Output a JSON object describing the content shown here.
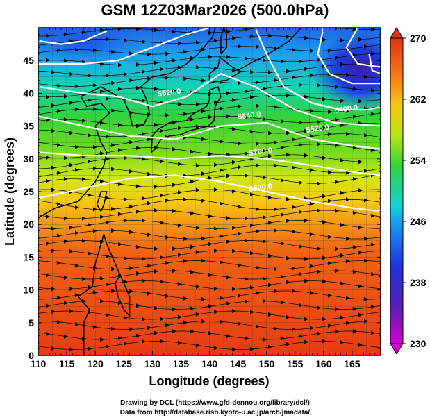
{
  "title": "GSM 12Z03Mar2026 (500.0hPa)",
  "x_axis": {
    "label": "Longitude (degrees)",
    "min": 110,
    "max": 170,
    "ticks": [
      110,
      115,
      120,
      125,
      130,
      135,
      140,
      145,
      150,
      155,
      160,
      165
    ]
  },
  "y_axis": {
    "label": "Latitude  (degrees)",
    "min": 0,
    "max": 50,
    "ticks": [
      0,
      5,
      10,
      15,
      20,
      25,
      30,
      35,
      40,
      45
    ]
  },
  "colorbar": {
    "min": 230,
    "max": 270,
    "tick_labels": [
      "270",
      "262",
      "254",
      "246",
      "238",
      "230"
    ],
    "tick_values": [
      270,
      262,
      254,
      246,
      238,
      230
    ],
    "colors": [
      "#c800c8",
      "#4a1ea8",
      "#1e3cdc",
      "#1e8cf0",
      "#14dcdc",
      "#3cd23c",
      "#a0e614",
      "#f0e614",
      "#f5a014",
      "#f05014",
      "#dc2814"
    ]
  },
  "contours": [
    {
      "label": "5520.0",
      "lon": 131,
      "lat": 39.5
    },
    {
      "label": "5640.0",
      "lon": 145,
      "lat": 36
    },
    {
      "label": "5760.0",
      "lon": 147,
      "lat": 30.5
    },
    {
      "label": "5880.0",
      "lon": 147,
      "lat": 25
    },
    {
      "label": "5400.0",
      "lon": 162,
      "lat": 37
    },
    {
      "label": "5520.0",
      "lon": 157,
      "lat": 34
    }
  ],
  "credits": [
    "Drawing by DCL (https://www.gfd-dennou.org/library/dcl/)",
    "Data from http://database.rish.kyoto-u.ac.jp/arch/jmadata/"
  ]
}
